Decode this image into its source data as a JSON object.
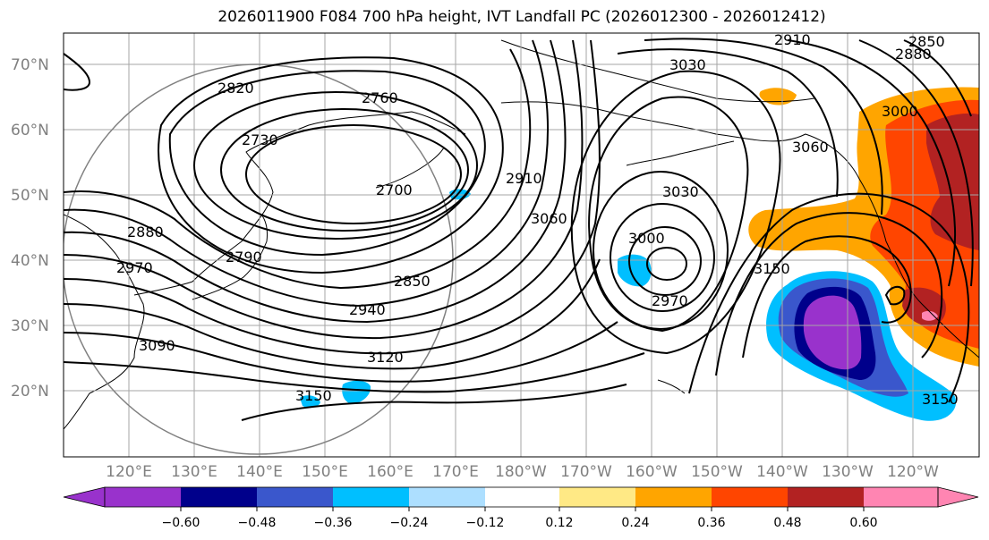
{
  "title": "2026011900 F084 700 hPa height, IVT Landfall PC (2026012300 - 2026012412)",
  "latitude_labels": [
    "70°N",
    "60°N",
    "50°N",
    "40°N",
    "30°N",
    "20°N"
  ],
  "longitude_labels": [
    "120°E",
    "130°E",
    "140°E",
    "150°E",
    "160°E",
    "170°E",
    "180°W",
    "170°W",
    "160°W",
    "150°W",
    "140°W",
    "130°W",
    "120°W"
  ],
  "height_contour_labels": [
    "2910",
    "2850",
    "2880",
    "3030",
    "2820",
    "2760",
    "2730",
    "2910",
    "3000",
    "3060",
    "2700",
    "3030",
    "3060",
    "2880",
    "2790",
    "2970",
    "3000",
    "2850",
    "2940",
    "2970",
    "3150",
    "3090",
    "3120",
    "3150",
    "3150"
  ],
  "colorbar": {
    "ticks": [
      "−0.60",
      "−0.48",
      "−0.36",
      "−0.24",
      "−0.12",
      "0.12",
      "0.24",
      "0.36",
      "0.48",
      "0.60"
    ],
    "colors": [
      "#9932CC",
      "#00008B",
      "#3A57CC",
      "#00BFFF",
      "#ADDFFF",
      "#FFFFFF",
      "#FFE985",
      "#FFA500",
      "#FF4500",
      "#B22222",
      "#FF85B2"
    ]
  }
}
